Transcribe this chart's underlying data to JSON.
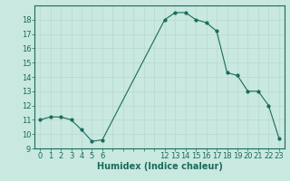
{
  "x": [
    0,
    1,
    2,
    3,
    4,
    5,
    6,
    12,
    13,
    14,
    15,
    16,
    17,
    18,
    19,
    20,
    21,
    22,
    23
  ],
  "y": [
    11,
    11.2,
    11.2,
    11,
    10.3,
    9.5,
    9.6,
    18,
    18.5,
    18.5,
    18,
    17.8,
    17.2,
    14.3,
    14.1,
    13,
    13,
    12,
    9.7
  ],
  "line_color": "#1a6b5a",
  "marker_color": "#1a6b5a",
  "bg_color": "#c8e8e0",
  "grid_color": "#b8d8d0",
  "xlabel": "Humidex (Indice chaleur)",
  "xlim": [
    -0.5,
    23.5
  ],
  "ylim": [
    9,
    19
  ],
  "yticks": [
    9,
    10,
    11,
    12,
    13,
    14,
    15,
    16,
    17,
    18
  ],
  "xticks_shown": [
    0,
    1,
    2,
    3,
    4,
    5,
    6,
    12,
    13,
    14,
    15,
    16,
    17,
    18,
    19,
    20,
    21,
    22,
    23
  ],
  "xticks_all": [
    0,
    1,
    2,
    3,
    4,
    5,
    6,
    7,
    8,
    9,
    10,
    11,
    12,
    13,
    14,
    15,
    16,
    17,
    18,
    19,
    20,
    21,
    22,
    23
  ],
  "label_fontsize": 7,
  "tick_fontsize": 6
}
